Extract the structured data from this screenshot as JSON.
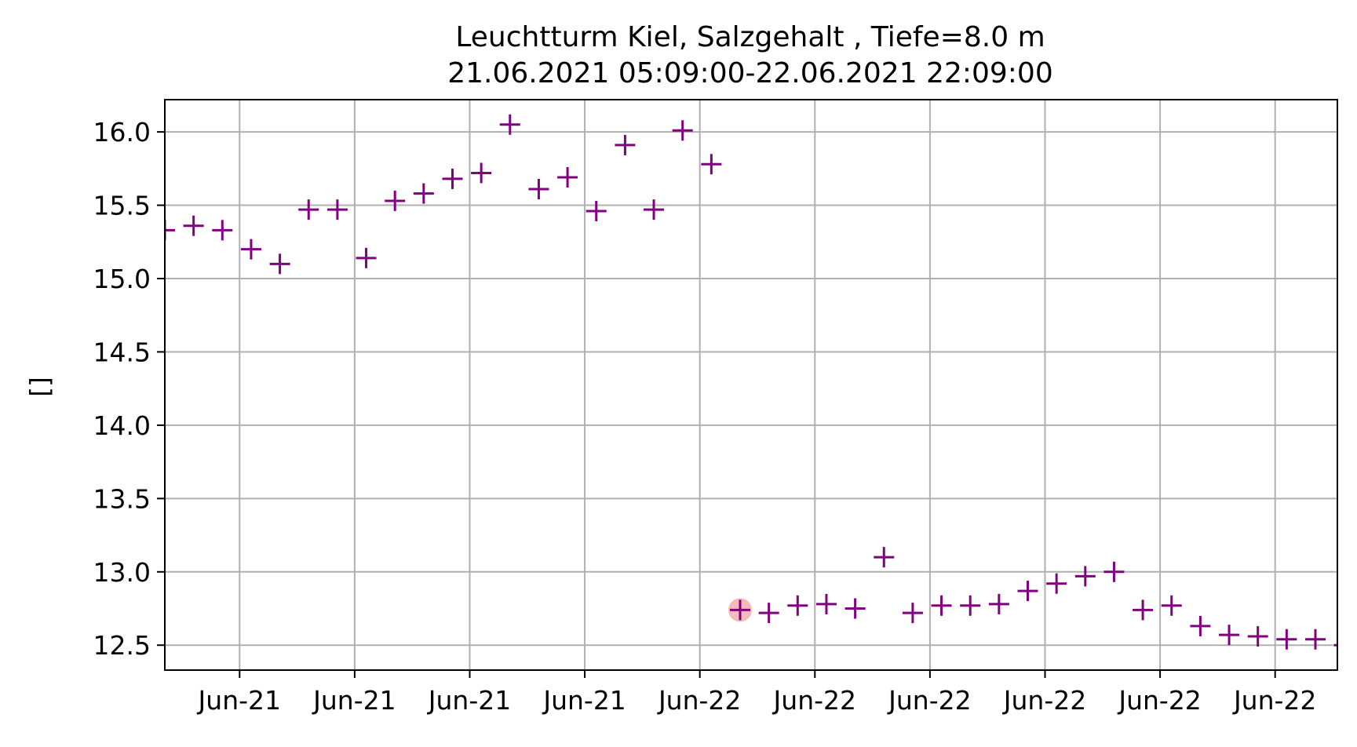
{
  "chart_data": {
    "type": "scatter",
    "title_line1": "Leuchtturm Kiel, Salzgehalt , Tiefe=8.0 m",
    "title_line2": "21.06.2021 05:09:00-22.06.2021 22:09:00",
    "xlabel": "",
    "ylabel": "[]",
    "ylim": [
      12.33,
      16.22
    ],
    "yticks": [
      "12.5",
      "13.0",
      "13.5",
      "14.0",
      "14.5",
      "15.0",
      "15.5",
      "16.0"
    ],
    "xtick_labels": [
      "Jun-21",
      "Jun-21",
      "Jun-21",
      "Jun-21",
      "Jun-22",
      "Jun-22",
      "Jun-22",
      "Jun-22",
      "Jun-22",
      "Jun-22"
    ],
    "grid": true,
    "marker": "+",
    "marker_color": "#800080",
    "highlight_color": "#f4a3a3",
    "highlight_index": 20,
    "series": [
      {
        "x": [
          "21.06.2021 05:09",
          "21.06.2021 06:09",
          "21.06.2021 07:09",
          "21.06.2021 08:09",
          "21.06.2021 09:09",
          "21.06.2021 10:09",
          "21.06.2021 11:09",
          "21.06.2021 12:09",
          "21.06.2021 13:09",
          "21.06.2021 14:09",
          "21.06.2021 15:09",
          "21.06.2021 16:09",
          "21.06.2021 17:09",
          "21.06.2021 18:09",
          "21.06.2021 19:09",
          "21.06.2021 20:09",
          "21.06.2021 21:09",
          "21.06.2021 22:09",
          "21.06.2021 23:09",
          "22.06.2021 00:09",
          "22.06.2021 01:09",
          "22.06.2021 02:09",
          "22.06.2021 03:09",
          "22.06.2021 04:09",
          "22.06.2021 05:09",
          "22.06.2021 06:09",
          "22.06.2021 07:09",
          "22.06.2021 08:09",
          "22.06.2021 09:09",
          "22.06.2021 10:09",
          "22.06.2021 11:09",
          "22.06.2021 12:09",
          "22.06.2021 13:09",
          "22.06.2021 14:09",
          "22.06.2021 15:09",
          "22.06.2021 16:09",
          "22.06.2021 17:09",
          "22.06.2021 18:09",
          "22.06.2021 19:09",
          "22.06.2021 20:09",
          "22.06.2021 21:09",
          "22.06.2021 22:09"
        ],
        "y": [
          15.33,
          15.36,
          15.33,
          15.2,
          15.1,
          15.47,
          15.47,
          15.14,
          15.53,
          15.58,
          15.68,
          15.72,
          16.05,
          15.61,
          15.69,
          15.46,
          15.91,
          15.47,
          16.01,
          15.78,
          12.74,
          12.72,
          12.77,
          12.78,
          12.75,
          13.1,
          12.72,
          12.77,
          12.77,
          12.78,
          12.87,
          12.92,
          12.97,
          13.0,
          12.74,
          12.77,
          12.63,
          12.57,
          12.56,
          12.54,
          12.54,
          12.5
        ]
      }
    ]
  }
}
